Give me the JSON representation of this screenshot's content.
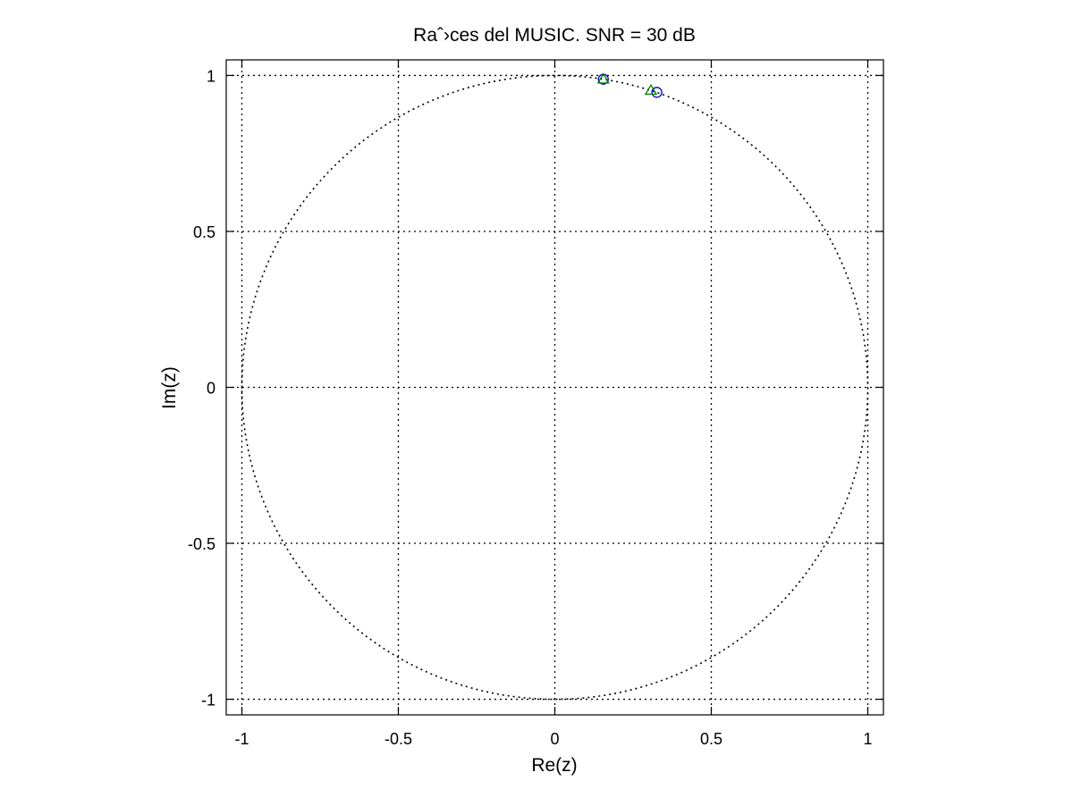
{
  "chart_data": {
    "type": "scatter",
    "title": "Raˆ›ces del MUSIC. SNR = 30 dB",
    "xlabel": "Re(z)",
    "ylabel": "Im(z)",
    "xlim": [
      -1.05,
      1.05
    ],
    "ylim": [
      -1.05,
      1.05
    ],
    "x_ticks": [
      -1,
      -0.5,
      0,
      0.5,
      1
    ],
    "y_ticks": [
      -1,
      -0.5,
      0,
      0.5,
      1
    ],
    "x_tick_labels": [
      "-1",
      "-0.5",
      "0",
      "0.5",
      "1"
    ],
    "y_tick_labels": [
      "-1",
      "-0.5",
      "0",
      "0.5",
      "1"
    ],
    "grid": true,
    "unit_circle": true,
    "series": [
      {
        "marker": "circle",
        "color": "#0000cc",
        "points": [
          [
            0.155,
            0.988
          ],
          [
            0.326,
            0.946
          ]
        ]
      },
      {
        "marker": "triangle",
        "color": "#008000",
        "points": [
          [
            0.155,
            0.988
          ],
          [
            0.307,
            0.952
          ]
        ]
      }
    ]
  }
}
